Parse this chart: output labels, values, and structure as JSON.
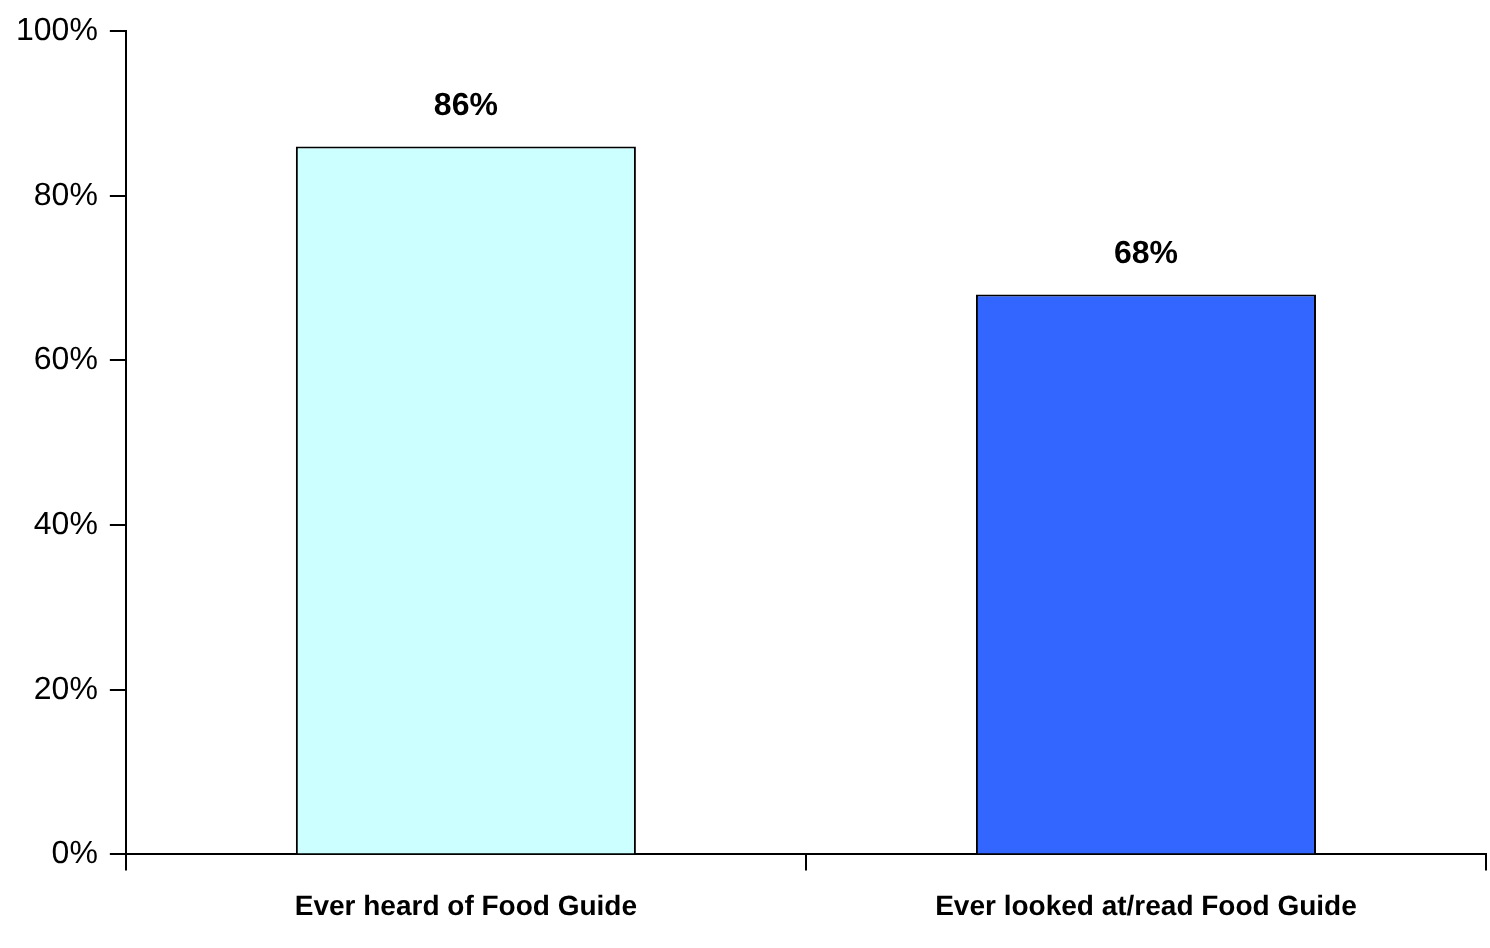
{
  "chart_data": {
    "type": "bar",
    "categories": [
      "Ever heard of Food Guide",
      "Ever looked at/read Food Guide"
    ],
    "values": [
      86,
      68
    ],
    "colors": [
      "#ccffff",
      "#3366ff"
    ],
    "value_labels": [
      "86%",
      "68%"
    ],
    "ylim": [
      0,
      100
    ],
    "yticks": [
      {
        "value": 0,
        "label": "0%"
      },
      {
        "value": 20,
        "label": "20%"
      },
      {
        "value": 40,
        "label": "40%"
      },
      {
        "value": 60,
        "label": "60%"
      },
      {
        "value": 80,
        "label": "80%"
      },
      {
        "value": 100,
        "label": "100%"
      }
    ],
    "grid": false,
    "legend": false
  }
}
